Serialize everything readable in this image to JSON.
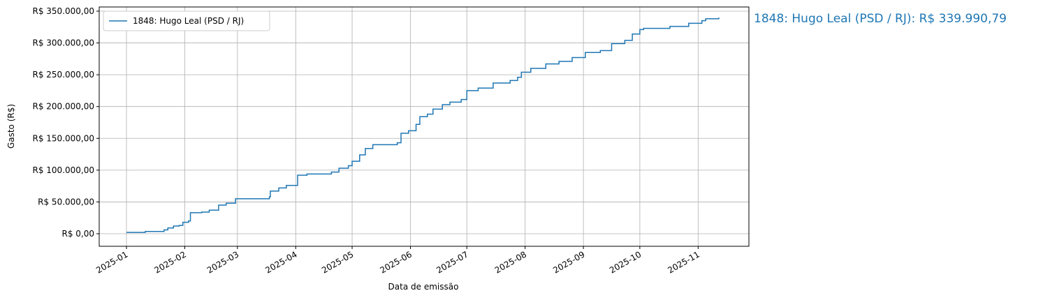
{
  "chart_data": {
    "type": "line",
    "step": true,
    "xlabel": "Data de emissão",
    "ylabel": "Gasto (R$)",
    "annotation": "1848: Hugo Leal (PSD / RJ): R$ 339.990,79",
    "legend": "upper left",
    "grid": true,
    "x": [
      0,
      10,
      20,
      22,
      25,
      28,
      30,
      33,
      34,
      40,
      44,
      49,
      53,
      58,
      76,
      76.5,
      81,
      85,
      91,
      96,
      109,
      113,
      118,
      120,
      124,
      127,
      131,
      144,
      146,
      150,
      154,
      156,
      160,
      163,
      168,
      172,
      178,
      181,
      187,
      195,
      204,
      208,
      210,
      215,
      223,
      230,
      237,
      244,
      252,
      258,
      265,
      269,
      273,
      275,
      289,
      299,
      306,
      308,
      315
    ],
    "series": [
      {
        "name": "1848: Hugo Leal (PSD / RJ)",
        "color": "#1f77b4",
        "values": [
          2000,
          3500,
          6000,
          9000,
          12000,
          13000,
          18000,
          20000,
          33000,
          34000,
          37000,
          45000,
          48000,
          55000,
          58000,
          67000,
          72000,
          76000,
          92000,
          94000,
          97000,
          103000,
          107000,
          114000,
          124000,
          134000,
          140000,
          143000,
          158000,
          162000,
          172000,
          184000,
          188000,
          196000,
          203000,
          207000,
          211000,
          225000,
          229000,
          237000,
          241000,
          246000,
          254000,
          260000,
          267000,
          271000,
          277000,
          285000,
          288000,
          299000,
          304000,
          314000,
          321000,
          323000,
          326000,
          331000,
          335000,
          338000,
          339990.79
        ]
      }
    ],
    "xlim": [
      -14.5,
      331
    ],
    "xticks": [
      {
        "value": 0,
        "label": "2025-01"
      },
      {
        "value": 31,
        "label": "2025-02"
      },
      {
        "value": 59,
        "label": "2025-03"
      },
      {
        "value": 90,
        "label": "2025-04"
      },
      {
        "value": 120,
        "label": "2025-05"
      },
      {
        "value": 151,
        "label": "2025-06"
      },
      {
        "value": 181,
        "label": "2025-07"
      },
      {
        "value": 212,
        "label": "2025-08"
      },
      {
        "value": 243,
        "label": "2025-09"
      },
      {
        "value": 273,
        "label": "2025-10"
      },
      {
        "value": 304,
        "label": "2025-11"
      }
    ],
    "ylim": [
      -19750,
      356580
    ],
    "yticks": [
      {
        "value": 0,
        "label": "R$ 0,00"
      },
      {
        "value": 50000,
        "label": "R$ 50.000,00"
      },
      {
        "value": 100000,
        "label": "R$ 100.000,00"
      },
      {
        "value": 150000,
        "label": "R$ 150.000,00"
      },
      {
        "value": 200000,
        "label": "R$ 200.000,00"
      },
      {
        "value": 250000,
        "label": "R$ 250.000,00"
      },
      {
        "value": 300000,
        "label": "R$ 300.000,00"
      },
      {
        "value": 350000,
        "label": "R$ 350.000,00"
      }
    ]
  }
}
